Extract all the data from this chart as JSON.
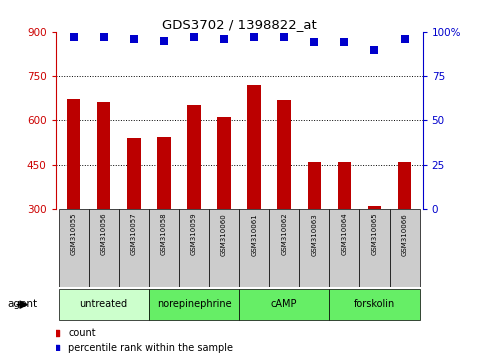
{
  "title": "GDS3702 / 1398822_at",
  "samples": [
    "GSM310055",
    "GSM310056",
    "GSM310057",
    "GSM310058",
    "GSM310059",
    "GSM310060",
    "GSM310061",
    "GSM310062",
    "GSM310063",
    "GSM310064",
    "GSM310065",
    "GSM310066"
  ],
  "counts": [
    672,
    663,
    540,
    545,
    652,
    610,
    720,
    668,
    460,
    460,
    308,
    460
  ],
  "percentiles": [
    97,
    97,
    96,
    95,
    97,
    96,
    97,
    97,
    94,
    94,
    90,
    96
  ],
  "groups": [
    {
      "label": "untreated",
      "start": 0,
      "end": 3,
      "color": "#ccffcc"
    },
    {
      "label": "norepinephrine",
      "start": 3,
      "end": 6,
      "color": "#66ee66"
    },
    {
      "label": "cAMP",
      "start": 6,
      "end": 9,
      "color": "#66ee66"
    },
    {
      "label": "forskolin",
      "start": 9,
      "end": 12,
      "color": "#66ee66"
    }
  ],
  "ylim_left": [
    300,
    900
  ],
  "ylim_right": [
    0,
    100
  ],
  "yticks_left": [
    300,
    450,
    600,
    750,
    900
  ],
  "yticks_right": [
    0,
    25,
    50,
    75,
    100
  ],
  "bar_color": "#bb0000",
  "bar_bottom": 300,
  "dot_color": "#0000cc",
  "dot_size": 40,
  "bar_width": 0.45,
  "tick_label_color_left": "#cc0000",
  "tick_label_color_right": "#0000cc",
  "title_color": "#000000",
  "sample_label_color": "#000000",
  "sample_bg_color": "#cccccc",
  "legend_count_color": "#cc0000",
  "legend_pct_color": "#0000cc",
  "agent_text": "agent",
  "legend_count_label": "count",
  "legend_pct_label": "percentile rank within the sample"
}
